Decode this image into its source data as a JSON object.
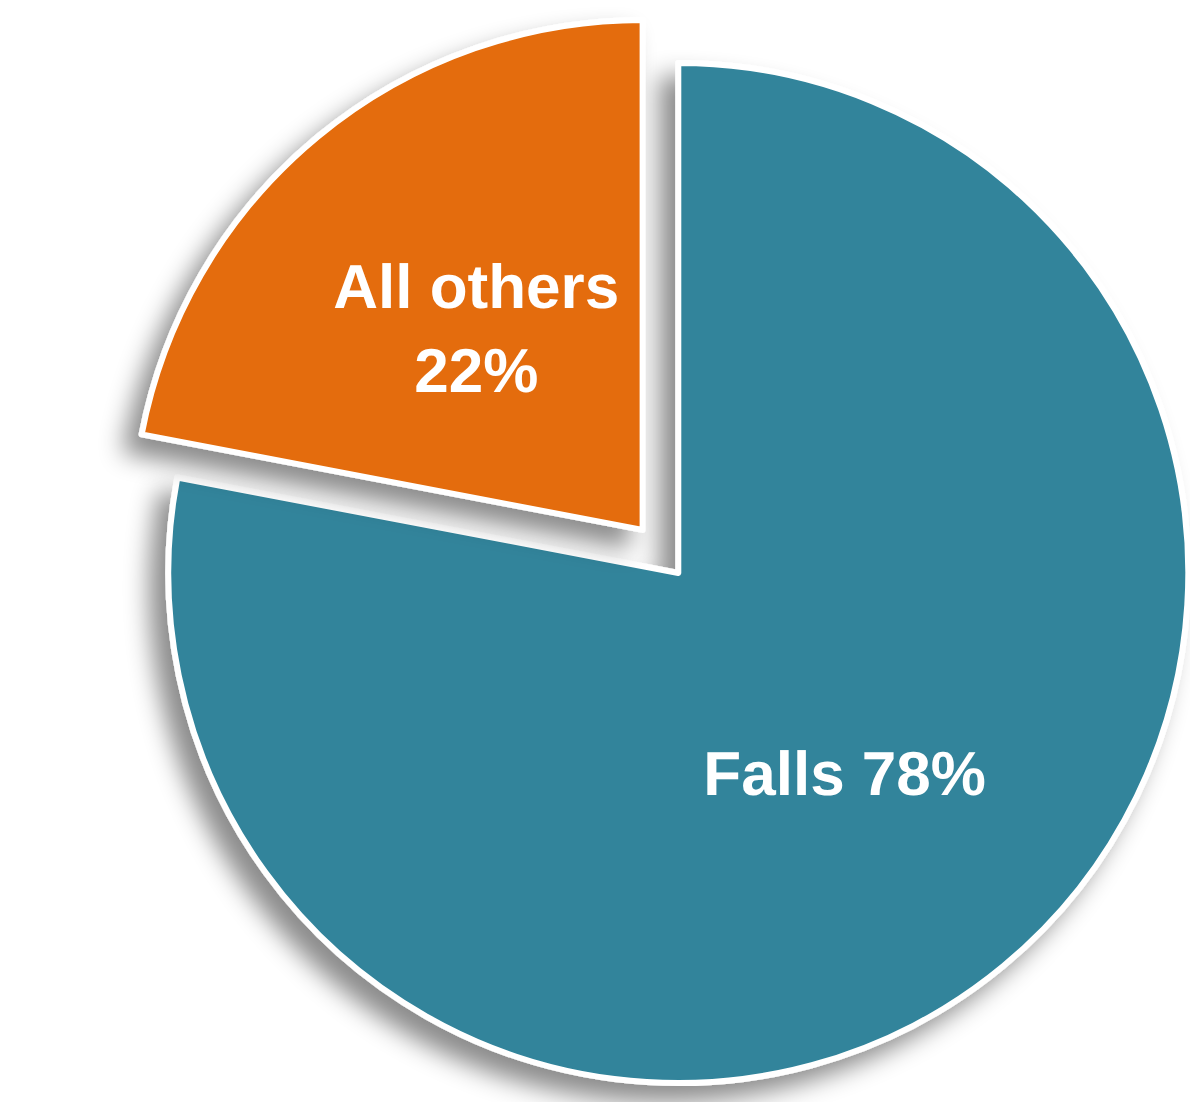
{
  "chart_data": {
    "type": "pie",
    "categories": [
      "Falls",
      "All others"
    ],
    "values": [
      78,
      22
    ],
    "value_labels": [
      "78%",
      "22%"
    ],
    "colors": [
      "#31849b",
      "#e46c0a"
    ]
  }
}
